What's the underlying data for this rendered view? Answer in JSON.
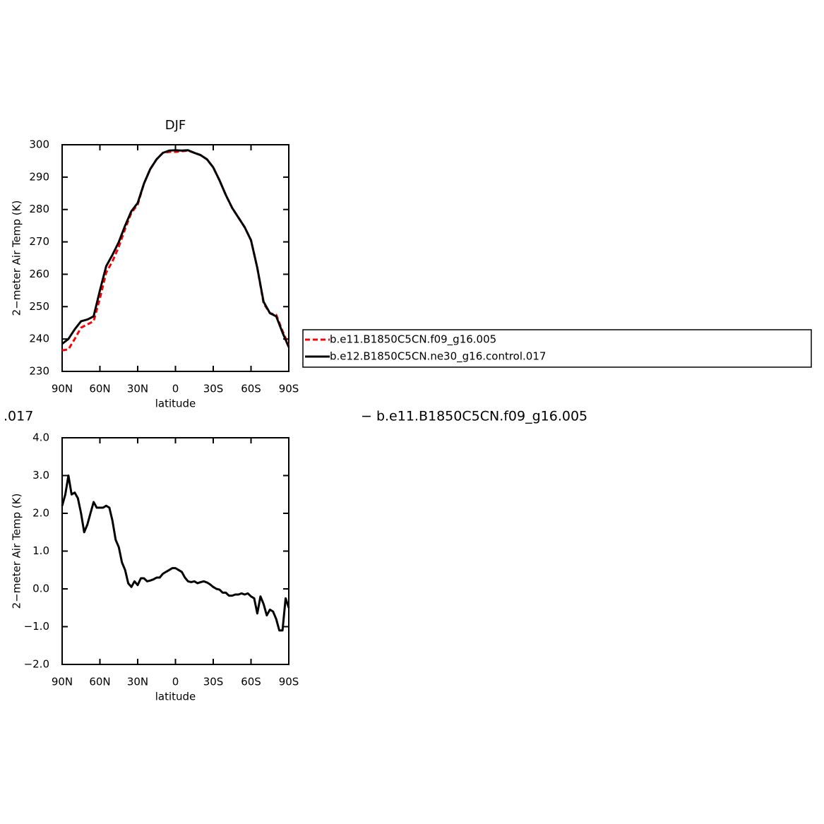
{
  "chart_data": [
    {
      "type": "line",
      "title": "DJF",
      "xlabel": "latitude",
      "ylabel": "2−meter Air Temp (K)",
      "x": [
        90,
        85,
        80,
        75,
        70,
        65,
        60,
        55,
        50,
        45,
        40,
        35,
        30,
        25,
        20,
        15,
        10,
        5,
        0,
        -5,
        -10,
        -15,
        -20,
        -25,
        -30,
        -35,
        -40,
        -45,
        -50,
        -55,
        -60,
        -65,
        -70,
        -75,
        -80,
        -85,
        -90
      ],
      "series": [
        {
          "name": "b.e11.B1850C5CN.f09_g16.005",
          "color": "#ff0000",
          "linestyle": "dashed",
          "values": [
            236.5,
            236.8,
            240,
            243.5,
            244.5,
            245.5,
            252.5,
            260.5,
            264,
            268.5,
            274,
            279,
            281.5,
            288,
            292.5,
            295.5,
            297.5,
            297.8,
            297.8,
            298,
            298.2,
            297.5,
            296.8,
            295.5,
            293,
            289,
            284.5,
            280.5,
            277.5,
            274.5,
            270.5,
            262,
            251,
            248,
            247.5,
            242.5,
            238
          ]
        },
        {
          "name": "b.e12.B1850C5CN.ne30_g16.control.017",
          "color": "#000000",
          "linestyle": "solid",
          "values": [
            238.5,
            240,
            243,
            245.5,
            246,
            247,
            255,
            262.5,
            266,
            270,
            275,
            279.5,
            282,
            288,
            292.5,
            295.5,
            297.5,
            298.2,
            298.3,
            298.2,
            298.3,
            297.5,
            296.8,
            295.5,
            293,
            289,
            284.5,
            280.5,
            277.5,
            274.5,
            270.5,
            262,
            251.5,
            248,
            247,
            242,
            237.5
          ]
        }
      ],
      "xlim": [
        90,
        -90
      ],
      "xticks": [
        {
          "value": 90,
          "label": "90N"
        },
        {
          "value": 60,
          "label": "60N"
        },
        {
          "value": 30,
          "label": "30N"
        },
        0,
        {
          "value": -30,
          "label": "30S"
        },
        {
          "value": -60,
          "label": "60S"
        },
        {
          "value": -90,
          "label": "90S"
        }
      ],
      "ylim": [
        230,
        300
      ],
      "yticks": [
        230,
        240,
        250,
        260,
        270,
        280,
        290,
        300
      ],
      "legend": "right"
    },
    {
      "type": "line",
      "xlabel": "latitude",
      "ylabel": "2−meter Air Temp (K)",
      "annotations": [
        ".017",
        "− b.e11.B1850C5CN.f09_g16.005"
      ],
      "x": [
        90,
        87.5,
        85,
        82.5,
        80,
        77.5,
        75,
        72.5,
        70,
        67.5,
        65,
        62.5,
        60,
        57.5,
        55,
        52.5,
        50,
        47.5,
        45,
        42.5,
        40,
        37.5,
        35,
        32.5,
        30,
        27.5,
        25,
        22.5,
        20,
        17.5,
        15,
        12.5,
        10,
        7.5,
        5,
        2.5,
        0,
        -2.5,
        -5,
        -7.5,
        -10,
        -12.5,
        -15,
        -17.5,
        -20,
        -22.5,
        -25,
        -27.5,
        -30,
        -32.5,
        -35,
        -37.5,
        -40,
        -42.5,
        -45,
        -47.5,
        -50,
        -52.5,
        -55,
        -57.5,
        -60,
        -62.5,
        -65,
        -67.5,
        -70,
        -72.5,
        -75,
        -77.5,
        -80,
        -82.5,
        -85,
        -87.5,
        -90
      ],
      "values": [
        2.2,
        2.5,
        3.0,
        2.5,
        2.55,
        2.4,
        2.0,
        1.5,
        1.7,
        2.0,
        2.3,
        2.15,
        2.15,
        2.15,
        2.2,
        2.15,
        1.8,
        1.3,
        1.1,
        0.7,
        0.5,
        0.15,
        0.05,
        0.2,
        0.1,
        0.28,
        0.28,
        0.2,
        0.22,
        0.25,
        0.3,
        0.3,
        0.4,
        0.45,
        0.5,
        0.55,
        0.55,
        0.5,
        0.45,
        0.3,
        0.2,
        0.18,
        0.2,
        0.15,
        0.18,
        0.2,
        0.17,
        0.12,
        0.05,
        0.0,
        -0.02,
        -0.1,
        -0.1,
        -0.18,
        -0.18,
        -0.15,
        -0.15,
        -0.12,
        -0.15,
        -0.12,
        -0.2,
        -0.25,
        -0.65,
        -0.2,
        -0.4,
        -0.7,
        -0.55,
        -0.6,
        -0.8,
        -1.1,
        -1.1,
        -0.25,
        -0.5
      ],
      "color": "#000000",
      "xlim": [
        90,
        -90
      ],
      "xticks": [
        {
          "value": 90,
          "label": "90N"
        },
        {
          "value": 60,
          "label": "60N"
        },
        {
          "value": 30,
          "label": "30N"
        },
        0,
        {
          "value": -30,
          "label": "30S"
        },
        {
          "value": -60,
          "label": "60S"
        },
        {
          "value": -90,
          "label": "90S"
        }
      ],
      "ylim": [
        -2,
        4
      ],
      "yticks": [
        {
          "value": -2,
          "label": "−2.0"
        },
        {
          "value": -1,
          "label": "−1.0"
        },
        {
          "value": 0,
          "label": "0.0"
        },
        {
          "value": 1,
          "label": "1.0"
        },
        {
          "value": 2,
          "label": "2.0"
        },
        {
          "value": 3,
          "label": "3.0"
        },
        {
          "value": 4,
          "label": "4.0"
        }
      ]
    }
  ]
}
